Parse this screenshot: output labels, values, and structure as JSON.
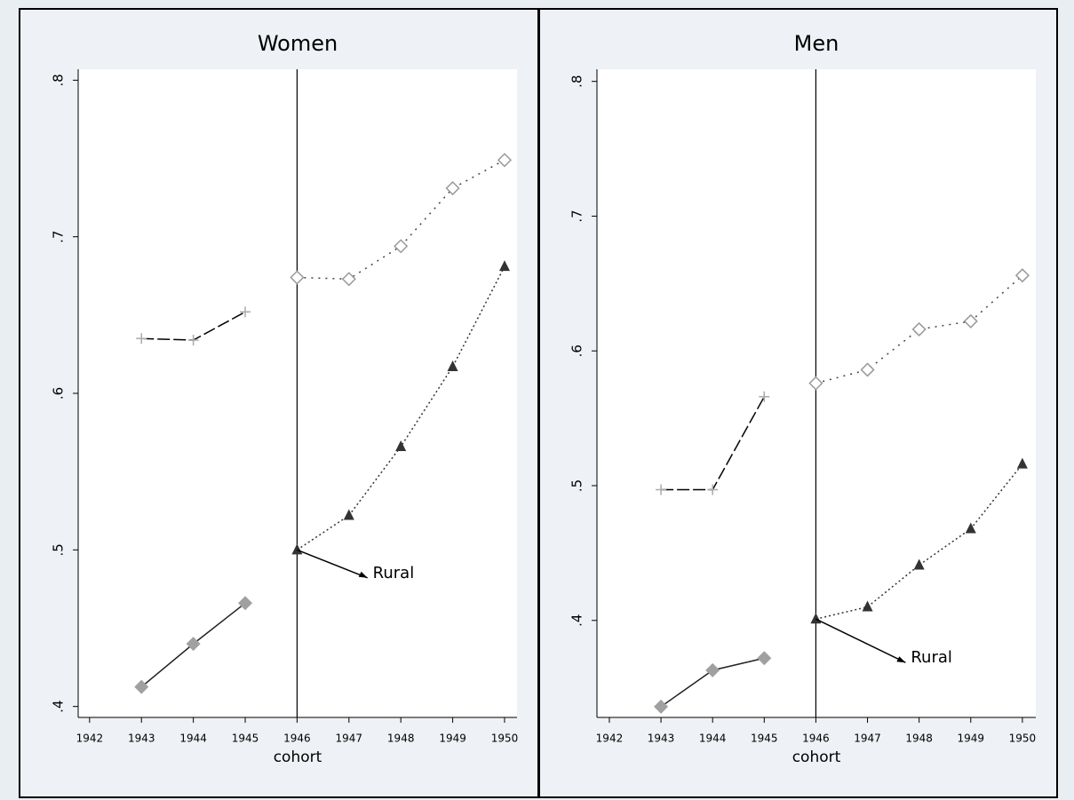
{
  "chart_data": [
    {
      "type": "line",
      "title": "Women",
      "xlabel": "cohort",
      "x": [
        1943,
        1944,
        1945,
        1946,
        1947,
        1948,
        1949,
        1950
      ],
      "xlim": [
        1941.78,
        1950.24
      ],
      "xticks": [
        1942,
        1943,
        1944,
        1945,
        1946,
        1947,
        1948,
        1949,
        1950
      ],
      "ylim": [
        0.393,
        0.807
      ],
      "yticks": [
        {
          "value": 0.4,
          "label": ".4"
        },
        {
          "value": 0.5,
          "label": ".5"
        },
        {
          "value": 0.6,
          "label": ".6"
        },
        {
          "value": 0.7,
          "label": ".7"
        },
        {
          "value": 0.8,
          "label": ".8"
        }
      ],
      "vline": 1946,
      "series": [
        {
          "color": "#000000",
          "marker": "plus",
          "marker_color": "#aaaaaa",
          "dash": "14 4",
          "values": [
            0.635,
            0.634,
            0.652,
            null,
            null,
            null,
            null,
            null
          ]
        },
        {
          "color": "#444444",
          "marker": "diamond-open",
          "marker_color": "#999999",
          "dash": "2 6",
          "values": [
            null,
            null,
            null,
            0.674,
            0.673,
            0.694,
            0.731,
            0.749
          ]
        },
        {
          "color": "#222222",
          "marker": "diamond",
          "marker_color": "#a0a0a0",
          "dash": "none",
          "values": [
            0.4125,
            0.44,
            0.466,
            null,
            null,
            null,
            null,
            null
          ]
        },
        {
          "color": "#333333",
          "marker": "triangle",
          "marker_color": "#333333",
          "dash": "2 3",
          "values": [
            null,
            null,
            null,
            0.5,
            0.522,
            0.566,
            0.617,
            0.681
          ]
        }
      ],
      "annotation": {
        "text": "Rural",
        "x": 1947.46,
        "y": 0.485
      }
    },
    {
      "type": "line",
      "title": "Men",
      "xlabel": "cohort",
      "x": [
        1943,
        1944,
        1945,
        1946,
        1947,
        1948,
        1949,
        1950
      ],
      "xlim": [
        1941.76,
        1950.26
      ],
      "xticks": [
        1942,
        1943,
        1944,
        1945,
        1946,
        1947,
        1948,
        1949,
        1950
      ],
      "ylim": [
        0.328,
        0.809
      ],
      "yticks": [
        {
          "value": 0.4,
          "label": ".4"
        },
        {
          "value": 0.5,
          "label": ".5"
        },
        {
          "value": 0.6,
          "label": ".6"
        },
        {
          "value": 0.7,
          "label": ".7"
        },
        {
          "value": 0.8,
          "label": ".8"
        }
      ],
      "vline": 1946,
      "series": [
        {
          "color": "#000000",
          "marker": "plus",
          "marker_color": "#aaaaaa",
          "dash": "14 4",
          "values": [
            0.497,
            0.497,
            0.566,
            null,
            null,
            null,
            null,
            null
          ]
        },
        {
          "color": "#444444",
          "marker": "diamond-open",
          "marker_color": "#999999",
          "dash": "2 6",
          "values": [
            null,
            null,
            null,
            0.576,
            0.586,
            0.616,
            0.622,
            0.656
          ]
        },
        {
          "color": "#222222",
          "marker": "diamond",
          "marker_color": "#a0a0a0",
          "dash": "none",
          "values": [
            0.336,
            0.363,
            0.372,
            null,
            null,
            null,
            null,
            null
          ]
        },
        {
          "color": "#333333",
          "marker": "triangle",
          "marker_color": "#333333",
          "dash": "2 3",
          "values": [
            null,
            null,
            null,
            0.401,
            0.41,
            0.441,
            0.468,
            0.516
          ]
        }
      ],
      "annotation": {
        "text": "Rural",
        "x": 1947.84,
        "y": 0.372
      }
    }
  ]
}
